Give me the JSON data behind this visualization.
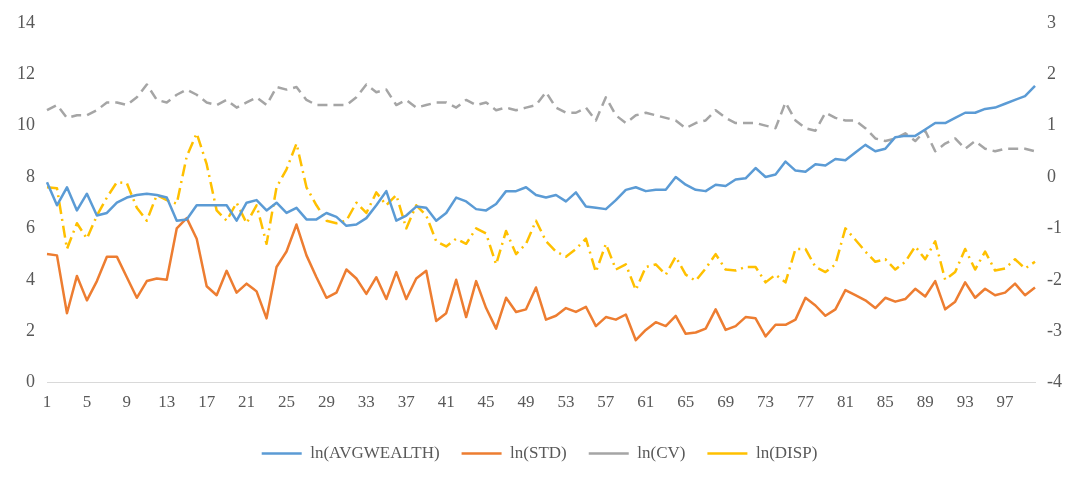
{
  "chart_data": {
    "type": "line",
    "categories": [
      "1",
      null,
      null,
      null,
      "5",
      null,
      null,
      null,
      "9",
      null,
      null,
      null,
      "13",
      null,
      null,
      null,
      "17",
      null,
      null,
      null,
      "21",
      null,
      null,
      null,
      "25",
      null,
      null,
      null,
      "29",
      null,
      null,
      null,
      "33",
      null,
      null,
      null,
      "37",
      null,
      null,
      null,
      "41",
      null,
      null,
      null,
      "45",
      null,
      null,
      null,
      "49",
      null,
      null,
      null,
      "53",
      null,
      null,
      null,
      "57",
      null,
      null,
      null,
      "61",
      null,
      null,
      null,
      "65",
      null,
      null,
      null,
      "69",
      null,
      null,
      null,
      "73",
      null,
      null,
      null,
      "77",
      null,
      null,
      null,
      "81",
      null,
      null,
      null,
      "85",
      null,
      null,
      null,
      "89",
      null,
      null,
      null,
      "93",
      null,
      null,
      null,
      "97",
      null,
      null,
      null
    ],
    "series": [
      {
        "name": "ln(AVGWEALTH)",
        "color": "#5b9bd5",
        "line_style": "solid",
        "values": [
          7.8,
          6.9,
          7.6,
          6.7,
          7.35,
          6.5,
          6.6,
          7.0,
          7.2,
          7.3,
          7.35,
          7.3,
          7.2,
          6.3,
          6.35,
          6.9,
          6.9,
          6.9,
          6.9,
          6.3,
          7.0,
          7.1,
          6.7,
          7.0,
          6.6,
          6.8,
          6.35,
          6.35,
          6.6,
          6.45,
          6.1,
          6.15,
          6.4,
          6.9,
          7.45,
          6.3,
          6.5,
          6.85,
          6.8,
          6.3,
          6.6,
          7.2,
          7.05,
          6.75,
          6.7,
          6.95,
          7.45,
          7.45,
          7.6,
          7.3,
          7.2,
          7.3,
          7.05,
          7.4,
          6.85,
          6.8,
          6.75,
          7.1,
          7.5,
          7.6,
          7.45,
          7.5,
          7.5,
          8.0,
          7.7,
          7.5,
          7.45,
          7.7,
          7.65,
          7.9,
          7.95,
          8.35,
          8.0,
          8.1,
          8.6,
          8.25,
          8.2,
          8.5,
          8.45,
          8.7,
          8.65,
          8.95,
          9.25,
          9.0,
          9.1,
          9.55,
          9.6,
          9.6,
          9.85,
          10.1,
          10.1,
          10.3,
          10.5,
          10.5,
          10.65,
          10.7,
          10.85,
          11.0,
          11.15,
          11.55
        ]
      },
      {
        "name": "ln(STD)",
        "color": "#ed7d31",
        "line_style": "solid",
        "values": [
          5.0,
          4.95,
          2.7,
          4.15,
          3.2,
          3.95,
          4.9,
          4.9,
          4.1,
          3.3,
          3.95,
          4.05,
          4.0,
          6.0,
          6.4,
          5.6,
          3.75,
          3.4,
          4.35,
          3.5,
          3.85,
          3.55,
          2.5,
          4.5,
          5.1,
          6.15,
          4.95,
          4.1,
          3.3,
          3.5,
          4.4,
          4.05,
          3.45,
          4.1,
          3.25,
          4.3,
          3.25,
          4.05,
          4.35,
          2.4,
          2.7,
          4.0,
          2.55,
          3.95,
          2.9,
          2.1,
          3.3,
          2.75,
          2.85,
          3.7,
          2.45,
          2.6,
          2.9,
          2.75,
          2.95,
          2.2,
          2.55,
          2.45,
          2.65,
          1.65,
          2.05,
          2.35,
          2.2,
          2.6,
          1.9,
          1.95,
          2.1,
          2.85,
          2.05,
          2.2,
          2.55,
          2.5,
          1.8,
          2.25,
          2.25,
          2.45,
          3.3,
          3.0,
          2.6,
          2.85,
          3.6,
          3.4,
          3.2,
          2.9,
          3.3,
          3.15,
          3.25,
          3.65,
          3.35,
          3.95,
          2.85,
          3.15,
          3.9,
          3.3,
          3.65,
          3.4,
          3.5,
          3.85,
          3.4,
          3.7
        ]
      },
      {
        "name": "ln(CV)",
        "color": "#a5a5a5",
        "line_style": "dashed",
        "axis": "y2",
        "values": [
          1.3,
          1.4,
          1.15,
          1.2,
          1.2,
          1.3,
          1.45,
          1.45,
          1.4,
          1.55,
          1.8,
          1.5,
          1.45,
          1.6,
          1.7,
          1.6,
          1.45,
          1.4,
          1.5,
          1.35,
          1.45,
          1.55,
          1.4,
          1.75,
          1.7,
          1.75,
          1.5,
          1.4,
          1.4,
          1.4,
          1.4,
          1.55,
          1.8,
          1.65,
          1.7,
          1.4,
          1.5,
          1.35,
          1.4,
          1.45,
          1.45,
          1.35,
          1.5,
          1.4,
          1.45,
          1.3,
          1.35,
          1.3,
          1.35,
          1.4,
          1.65,
          1.35,
          1.25,
          1.25,
          1.35,
          1.1,
          1.55,
          1.2,
          1.05,
          1.2,
          1.25,
          1.2,
          1.15,
          1.1,
          0.95,
          1.05,
          1.1,
          1.3,
          1.15,
          1.05,
          1.05,
          1.05,
          1.0,
          0.95,
          1.45,
          1.1,
          0.95,
          0.9,
          1.25,
          1.15,
          1.1,
          1.1,
          0.95,
          0.75,
          0.7,
          0.75,
          0.85,
          0.7,
          0.9,
          0.5,
          0.65,
          0.75,
          0.55,
          0.7,
          0.55,
          0.5,
          0.55,
          0.55,
          0.55,
          0.5
        ]
      },
      {
        "name": "ln(DISP)",
        "color": "#ffc000",
        "line_style": "dashdot",
        "axis": "y2",
        "values": [
          -0.2,
          -0.22,
          -1.4,
          -0.9,
          -1.2,
          -0.75,
          -0.4,
          -0.1,
          -0.12,
          -0.6,
          -0.85,
          -0.35,
          -0.45,
          -0.52,
          0.4,
          0.85,
          0.25,
          -0.65,
          -0.85,
          -0.5,
          -0.9,
          -0.55,
          -1.3,
          -0.2,
          0.15,
          0.65,
          -0.2,
          -0.55,
          -0.85,
          -0.9,
          -0.85,
          -0.5,
          -0.7,
          -0.3,
          -0.55,
          -0.35,
          -1.0,
          -0.55,
          -0.75,
          -1.25,
          -1.35,
          -1.2,
          -1.3,
          -1.0,
          -1.1,
          -1.7,
          -1.05,
          -1.5,
          -1.3,
          -0.85,
          -1.25,
          -1.45,
          -1.55,
          -1.4,
          -1.2,
          -1.85,
          -1.3,
          -1.8,
          -1.7,
          -2.2,
          -1.75,
          -1.7,
          -1.9,
          -1.55,
          -1.9,
          -2.02,
          -1.78,
          -1.5,
          -1.8,
          -1.82,
          -1.75,
          -1.75,
          -2.05,
          -1.9,
          -2.05,
          -1.4,
          -1.4,
          -1.75,
          -1.85,
          -1.7,
          -1.0,
          -1.22,
          -1.45,
          -1.65,
          -1.6,
          -1.8,
          -1.65,
          -1.35,
          -1.6,
          -1.25,
          -2.0,
          -1.85,
          -1.4,
          -1.8,
          -1.45,
          -1.82,
          -1.78,
          -1.6,
          -1.78,
          -1.65
        ]
      }
    ],
    "ylim": [
      0,
      14
    ],
    "yticks": [
      0,
      2,
      4,
      6,
      8,
      10,
      12,
      14
    ],
    "y2lim": [
      -4,
      3
    ],
    "y2ticks": [
      -4,
      -3,
      -2,
      -1,
      0,
      1,
      2,
      3
    ],
    "grid": false,
    "legend": "bottom",
    "marker": "none"
  }
}
